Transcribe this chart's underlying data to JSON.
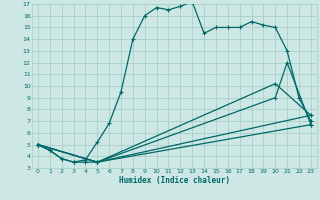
{
  "xlabel": "Humidex (Indice chaleur)",
  "bg_color": "#cde8e4",
  "grid_color": "#a8cec8",
  "line_color": "#006868",
  "xlim": [
    -0.5,
    23.5
  ],
  "ylim": [
    3,
    17
  ],
  "xticks": [
    0,
    1,
    2,
    3,
    4,
    5,
    6,
    7,
    8,
    9,
    10,
    11,
    12,
    13,
    14,
    15,
    16,
    17,
    18,
    19,
    20,
    21,
    22,
    23
  ],
  "yticks": [
    3,
    4,
    5,
    6,
    7,
    8,
    9,
    10,
    11,
    12,
    13,
    14,
    15,
    16,
    17
  ],
  "line1_x": [
    0,
    1,
    2,
    3,
    4,
    5,
    6,
    7,
    8,
    9,
    10,
    11,
    12,
    13,
    14,
    15,
    16,
    17,
    18,
    19,
    20,
    21,
    22,
    23
  ],
  "line1_y": [
    5,
    4.5,
    3.8,
    3.5,
    3.7,
    5.2,
    6.8,
    9.5,
    14.0,
    16.0,
    16.7,
    16.5,
    16.8,
    17.2,
    14.5,
    15.0,
    15.0,
    15.0,
    15.5,
    15.2,
    15.0,
    13.0,
    9.0,
    7.0
  ],
  "line2_x": [
    0,
    1,
    2,
    3,
    4,
    5,
    20,
    21,
    23
  ],
  "line2_y": [
    5,
    4.5,
    3.8,
    3.5,
    3.5,
    3.5,
    9.0,
    12.0,
    6.7
  ],
  "line3_x": [
    0,
    5,
    23
  ],
  "line3_y": [
    5,
    3.5,
    6.7
  ],
  "line4_x": [
    0,
    5,
    23
  ],
  "line4_y": [
    5,
    3.5,
    7.5
  ],
  "line5_x": [
    0,
    5,
    20,
    23
  ],
  "line5_y": [
    5,
    3.5,
    10.2,
    7.5
  ]
}
